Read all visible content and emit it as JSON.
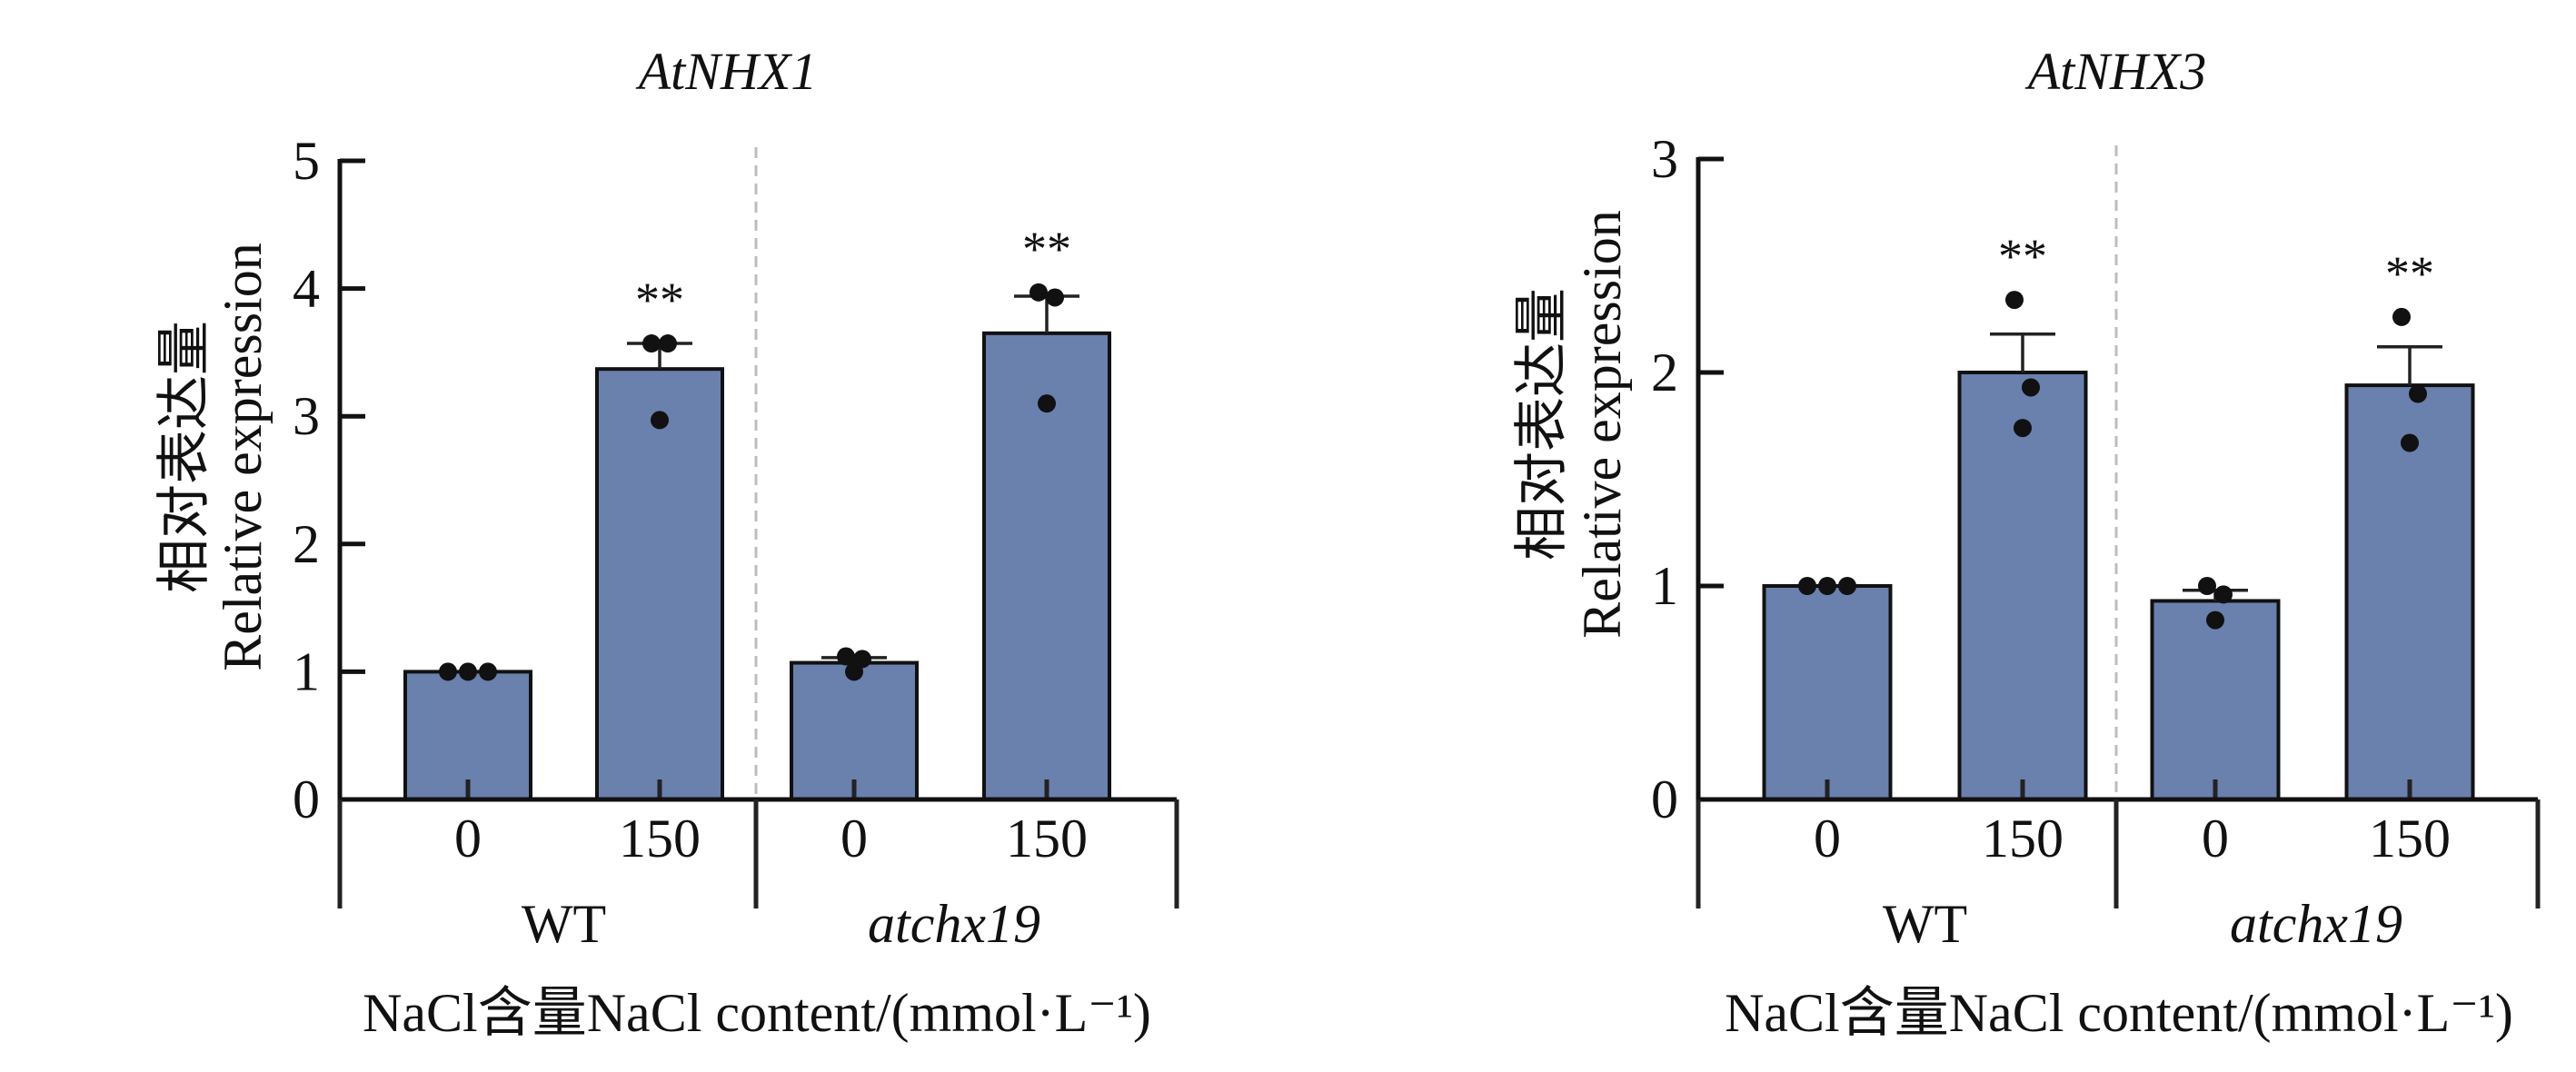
{
  "figure": {
    "colors": {
      "bar_fill": "#6a80ad",
      "bar_stroke": "#111111",
      "point": "#111111",
      "axis": "#111111",
      "divider": "#bdbdbd"
    }
  },
  "chart_data": [
    {
      "type": "bar",
      "title": "AtNHX1",
      "ylabel_zh": "相对表达量",
      "ylabel": "Relative expression",
      "xlabel": "NaCl含量NaCl content/(mmol·L⁻¹)",
      "ylim": [
        0,
        5
      ],
      "yticks": [
        "0",
        "1",
        "2",
        "3",
        "4",
        "5"
      ],
      "groups": [
        {
          "name": "WT",
          "italic": false
        },
        {
          "name": "atchx19",
          "italic": true
        }
      ],
      "categories": [
        "0",
        "150",
        "0",
        "150"
      ],
      "values": [
        1.0,
        3.37,
        1.07,
        3.65
      ],
      "error_upper": [
        1.0,
        3.57,
        1.11,
        3.94
      ],
      "points": [
        [
          1.0,
          1.0,
          1.0
        ],
        [
          3.57,
          3.57,
          2.97
        ],
        [
          1.12,
          1.1,
          1.0
        ],
        [
          3.97,
          3.93,
          3.1
        ]
      ],
      "significance": [
        "",
        "**",
        "",
        "**"
      ]
    },
    {
      "type": "bar",
      "title": "AtNHX3",
      "ylabel_zh": "相对表达量",
      "ylabel": "Relative expression",
      "xlabel": "NaCl含量NaCl content/(mmol·L⁻¹)",
      "ylim": [
        0,
        3
      ],
      "yticks": [
        "0",
        "1",
        "2",
        "3"
      ],
      "groups": [
        {
          "name": "WT",
          "italic": false
        },
        {
          "name": "atchx19",
          "italic": true
        }
      ],
      "categories": [
        "0",
        "150",
        "0",
        "150"
      ],
      "values": [
        1.0,
        2.0,
        0.93,
        1.94
      ],
      "error_upper": [
        1.0,
        2.18,
        0.98,
        2.12
      ],
      "points": [
        [
          1.0,
          1.0,
          1.0
        ],
        [
          2.34,
          1.93,
          1.74
        ],
        [
          1.0,
          0.96,
          0.84
        ],
        [
          2.26,
          1.9,
          1.67
        ]
      ],
      "significance": [
        "",
        "**",
        "",
        "**"
      ]
    }
  ]
}
